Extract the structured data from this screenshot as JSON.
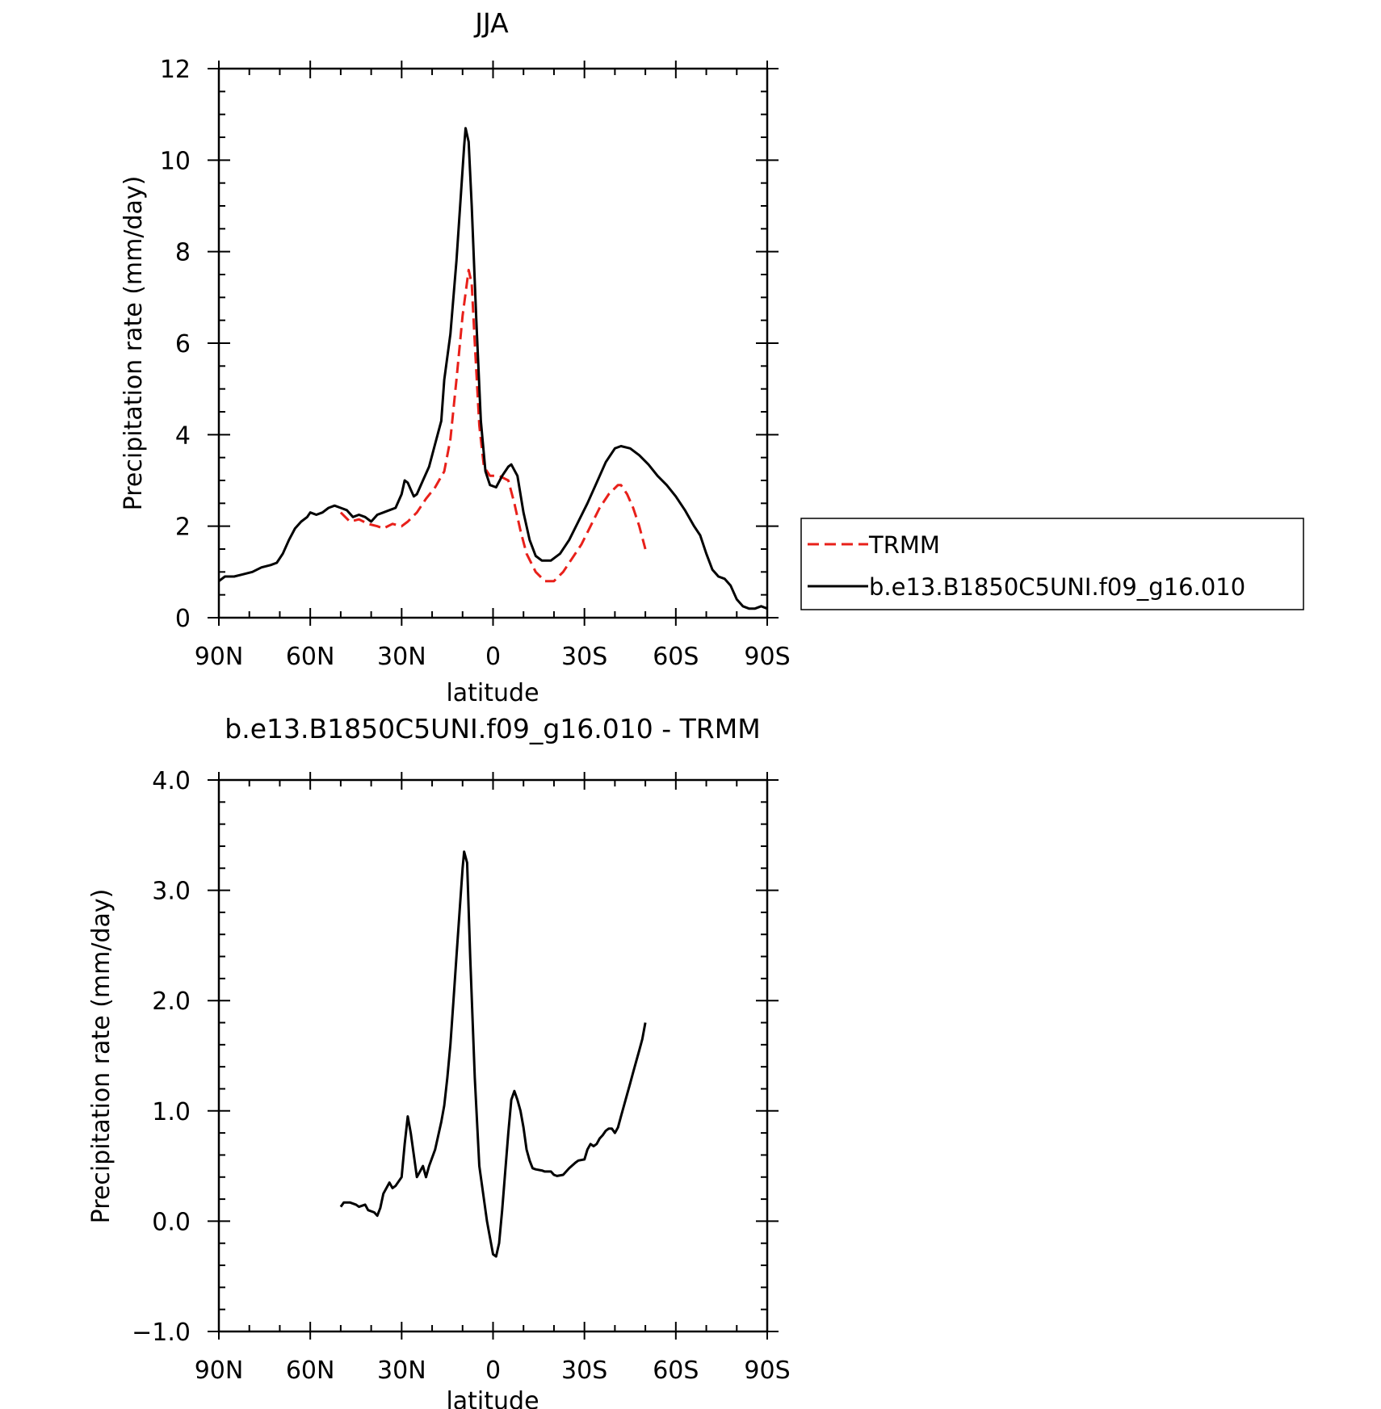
{
  "chart_data": [
    {
      "type": "line",
      "title": "JJA",
      "xlabel": "latitude",
      "ylabel": "Precipitation rate (mm/day)",
      "xlim": [
        90,
        -90
      ],
      "ylim": [
        0,
        12
      ],
      "x_ticks": [
        90,
        60,
        30,
        0,
        -30,
        -60,
        -90
      ],
      "x_tick_labels": [
        "90N",
        "60N",
        "30N",
        "0",
        "30S",
        "60S",
        "90S"
      ],
      "y_ticks": [
        0,
        2,
        4,
        6,
        8,
        10,
        12
      ],
      "y_tick_labels": [
        "0",
        "2",
        "4",
        "6",
        "8",
        "10",
        "12"
      ],
      "grid": false,
      "legend_position": "right-outside",
      "series": [
        {
          "name": "TRMM",
          "color": "#e8201a",
          "dash": "dashed",
          "points": [
            [
              50,
              2.3
            ],
            [
              47,
              2.1
            ],
            [
              44,
              2.15
            ],
            [
              41,
              2.05
            ],
            [
              38,
              2.0
            ],
            [
              36,
              1.95
            ],
            [
              33,
              2.05
            ],
            [
              30,
              2.0
            ],
            [
              28,
              2.1
            ],
            [
              25,
              2.3
            ],
            [
              22,
              2.6
            ],
            [
              19,
              2.85
            ],
            [
              16,
              3.2
            ],
            [
              14,
              3.9
            ],
            [
              12,
              5.2
            ],
            [
              10,
              6.6
            ],
            [
              8,
              7.6
            ],
            [
              7,
              7.3
            ],
            [
              6,
              6.0
            ],
            [
              4.5,
              4.2
            ],
            [
              3,
              3.3
            ],
            [
              1,
              3.1
            ],
            [
              -2,
              3.1
            ],
            [
              -5,
              3.0
            ],
            [
              -7,
              2.5
            ],
            [
              -9,
              1.9
            ],
            [
              -11,
              1.4
            ],
            [
              -14,
              1.0
            ],
            [
              -17,
              0.8
            ],
            [
              -20,
              0.8
            ],
            [
              -23,
              1.0
            ],
            [
              -26,
              1.3
            ],
            [
              -29,
              1.6
            ],
            [
              -32,
              2.0
            ],
            [
              -35,
              2.4
            ],
            [
              -38,
              2.7
            ],
            [
              -41,
              2.9
            ],
            [
              -42,
              2.9
            ],
            [
              -44,
              2.7
            ],
            [
              -46,
              2.4
            ],
            [
              -48,
              2.0
            ],
            [
              -50,
              1.5
            ]
          ]
        },
        {
          "name": "b.e13.B1850C5UNI.f09_g16.010",
          "color": "#000000",
          "dash": "solid",
          "points": [
            [
              90,
              0.8
            ],
            [
              88,
              0.9
            ],
            [
              85,
              0.9
            ],
            [
              82,
              0.95
            ],
            [
              79,
              1.0
            ],
            [
              76,
              1.1
            ],
            [
              73,
              1.15
            ],
            [
              71,
              1.2
            ],
            [
              69,
              1.4
            ],
            [
              67,
              1.7
            ],
            [
              65,
              1.95
            ],
            [
              63,
              2.1
            ],
            [
              61,
              2.2
            ],
            [
              60,
              2.3
            ],
            [
              58,
              2.25
            ],
            [
              56,
              2.3
            ],
            [
              54,
              2.4
            ],
            [
              52,
              2.45
            ],
            [
              50,
              2.4
            ],
            [
              48,
              2.35
            ],
            [
              46,
              2.2
            ],
            [
              44,
              2.25
            ],
            [
              42,
              2.2
            ],
            [
              40,
              2.1
            ],
            [
              38,
              2.25
            ],
            [
              36,
              2.3
            ],
            [
              34,
              2.35
            ],
            [
              32,
              2.4
            ],
            [
              30,
              2.7
            ],
            [
              29,
              3.0
            ],
            [
              28,
              2.95
            ],
            [
              27,
              2.8
            ],
            [
              26,
              2.65
            ],
            [
              25,
              2.7
            ],
            [
              23,
              3.0
            ],
            [
              21,
              3.3
            ],
            [
              19,
              3.8
            ],
            [
              17,
              4.3
            ],
            [
              16,
              5.2
            ],
            [
              14,
              6.2
            ],
            [
              12,
              7.8
            ],
            [
              10.5,
              9.3
            ],
            [
              9.5,
              10.3
            ],
            [
              9,
              10.7
            ],
            [
              8,
              10.4
            ],
            [
              7,
              9.0
            ],
            [
              5.5,
              6.5
            ],
            [
              4,
              4.3
            ],
            [
              2.5,
              3.2
            ],
            [
              1,
              2.9
            ],
            [
              -1,
              2.85
            ],
            [
              -3,
              3.1
            ],
            [
              -5,
              3.3
            ],
            [
              -6,
              3.35
            ],
            [
              -8,
              3.1
            ],
            [
              -10,
              2.3
            ],
            [
              -12,
              1.7
            ],
            [
              -14,
              1.35
            ],
            [
              -16,
              1.25
            ],
            [
              -19,
              1.25
            ],
            [
              -22,
              1.4
            ],
            [
              -25,
              1.7
            ],
            [
              -28,
              2.1
            ],
            [
              -31,
              2.5
            ],
            [
              -34,
              2.95
            ],
            [
              -37,
              3.4
            ],
            [
              -40,
              3.7
            ],
            [
              -42,
              3.75
            ],
            [
              -45,
              3.7
            ],
            [
              -48,
              3.55
            ],
            [
              -51,
              3.35
            ],
            [
              -54,
              3.1
            ],
            [
              -57,
              2.9
            ],
            [
              -60,
              2.65
            ],
            [
              -63,
              2.35
            ],
            [
              -66,
              2.0
            ],
            [
              -68,
              1.8
            ],
            [
              -70,
              1.4
            ],
            [
              -72,
              1.05
            ],
            [
              -74,
              0.9
            ],
            [
              -76,
              0.85
            ],
            [
              -78,
              0.7
            ],
            [
              -80,
              0.4
            ],
            [
              -82,
              0.25
            ],
            [
              -84,
              0.2
            ],
            [
              -86,
              0.2
            ],
            [
              -88,
              0.25
            ],
            [
              -90,
              0.2
            ]
          ]
        }
      ]
    },
    {
      "type": "line",
      "title": "b.e13.B1850C5UNI.f09_g16.010 - TRMM",
      "xlabel": "latitude",
      "ylabel": "Precipitation rate (mm/day)",
      "xlim": [
        90,
        -90
      ],
      "ylim": [
        -1,
        4
      ],
      "x_ticks": [
        90,
        60,
        30,
        0,
        -30,
        -60,
        -90
      ],
      "x_tick_labels": [
        "90N",
        "60N",
        "30N",
        "0",
        "30S",
        "60S",
        "90S"
      ],
      "y_ticks": [
        -1,
        0,
        1,
        2,
        3,
        4
      ],
      "y_tick_labels": [
        "−1.0",
        "0.0",
        "1.0",
        "2.0",
        "3.0",
        "4.0"
      ],
      "grid": false,
      "series": [
        {
          "color": "#000000",
          "dash": "solid",
          "points": [
            [
              50,
              0.13
            ],
            [
              49,
              0.17
            ],
            [
              47,
              0.17
            ],
            [
              45,
              0.15
            ],
            [
              44,
              0.13
            ],
            [
              42,
              0.15
            ],
            [
              41,
              0.1
            ],
            [
              39,
              0.08
            ],
            [
              38,
              0.05
            ],
            [
              37,
              0.12
            ],
            [
              36,
              0.25
            ],
            [
              34,
              0.35
            ],
            [
              33,
              0.3
            ],
            [
              32,
              0.32
            ],
            [
              30,
              0.4
            ],
            [
              29,
              0.7
            ],
            [
              28,
              0.95
            ],
            [
              27,
              0.8
            ],
            [
              26,
              0.6
            ],
            [
              25,
              0.4
            ],
            [
              23,
              0.5
            ],
            [
              22,
              0.4
            ],
            [
              21,
              0.5
            ],
            [
              19,
              0.65
            ],
            [
              17,
              0.9
            ],
            [
              16,
              1.05
            ],
            [
              15,
              1.3
            ],
            [
              14,
              1.6
            ],
            [
              13,
              2.0
            ],
            [
              12,
              2.4
            ],
            [
              11,
              2.8
            ],
            [
              10,
              3.2
            ],
            [
              9.5,
              3.35
            ],
            [
              8.5,
              3.25
            ],
            [
              7.5,
              2.4
            ],
            [
              6,
              1.3
            ],
            [
              4.5,
              0.5
            ],
            [
              2,
              0.0
            ],
            [
              0,
              -0.3
            ],
            [
              -1,
              -0.32
            ],
            [
              -2,
              -0.2
            ],
            [
              -3,
              0.1
            ],
            [
              -4,
              0.45
            ],
            [
              -5,
              0.8
            ],
            [
              -6,
              1.1
            ],
            [
              -7,
              1.18
            ],
            [
              -8,
              1.1
            ],
            [
              -9,
              1.0
            ],
            [
              -10,
              0.85
            ],
            [
              -11,
              0.65
            ],
            [
              -12,
              0.55
            ],
            [
              -13,
              0.48
            ],
            [
              -14,
              0.47
            ],
            [
              -16,
              0.46
            ],
            [
              -17,
              0.45
            ],
            [
              -19,
              0.45
            ],
            [
              -20,
              0.42
            ],
            [
              -21,
              0.41
            ],
            [
              -23,
              0.42
            ],
            [
              -25,
              0.48
            ],
            [
              -27,
              0.53
            ],
            [
              -28,
              0.55
            ],
            [
              -30,
              0.56
            ],
            [
              -31,
              0.65
            ],
            [
              -32,
              0.7
            ],
            [
              -33,
              0.68
            ],
            [
              -34,
              0.7
            ],
            [
              -35,
              0.75
            ],
            [
              -36,
              0.78
            ],
            [
              -37,
              0.82
            ],
            [
              -38,
              0.84
            ],
            [
              -39,
              0.84
            ],
            [
              -40,
              0.8
            ],
            [
              -41,
              0.85
            ],
            [
              -42,
              0.95
            ],
            [
              -43,
              1.05
            ],
            [
              -44,
              1.15
            ],
            [
              -45,
              1.25
            ],
            [
              -46,
              1.35
            ],
            [
              -47,
              1.45
            ],
            [
              -48,
              1.55
            ],
            [
              -49,
              1.65
            ],
            [
              -50,
              1.8
            ]
          ]
        }
      ]
    }
  ],
  "legend": {
    "items": [
      {
        "label": "TRMM"
      },
      {
        "label": "b.e13.B1850C5UNI.f09_g16.010"
      }
    ]
  }
}
